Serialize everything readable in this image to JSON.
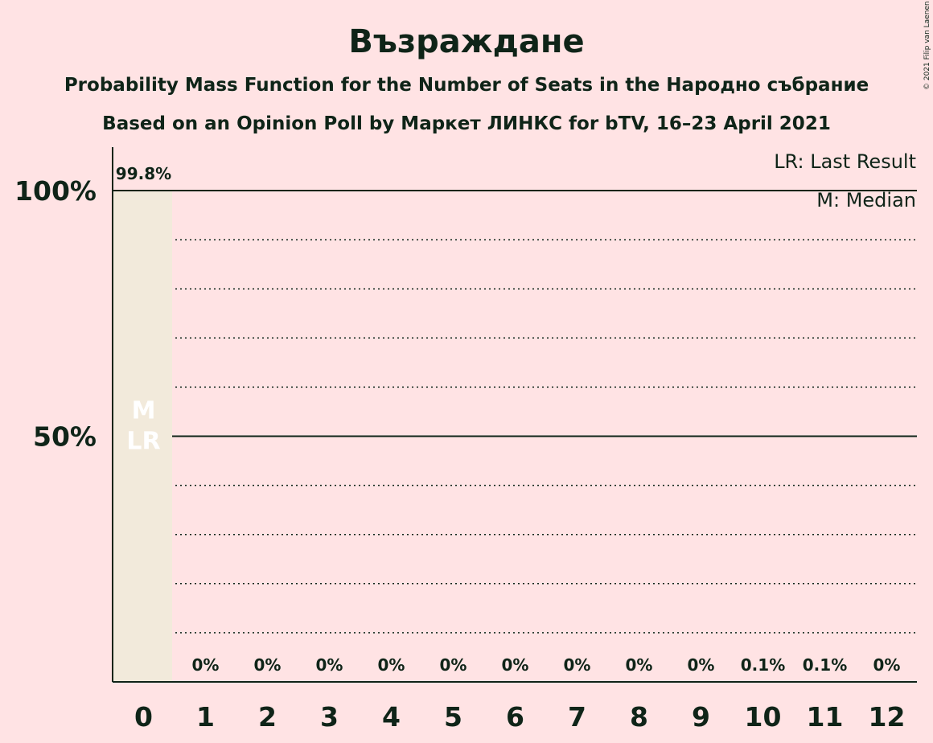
{
  "colors": {
    "background": "#ffe3e4",
    "bar": "#f2eadb",
    "text": "#0f2418"
  },
  "copyright": "© 2021 Filip van Laenen",
  "chart_data": {
    "type": "bar",
    "title": "Възраждане",
    "subtitles": [
      "Probability Mass Function for the Number of Seats in the Народно събрание",
      "Based on an Opinion Poll by Маркет ЛИНКС for bTV, 16–23 April 2021"
    ],
    "categories": [
      "0",
      "1",
      "2",
      "3",
      "4",
      "5",
      "6",
      "7",
      "8",
      "9",
      "10",
      "11",
      "12"
    ],
    "values": [
      99.8,
      0,
      0,
      0,
      0,
      0,
      0,
      0,
      0,
      0,
      0.1,
      0.1,
      0
    ],
    "data_labels": [
      "99.8%",
      "0%",
      "0%",
      "0%",
      "0%",
      "0%",
      "0%",
      "0%",
      "0%",
      "0%",
      "0.1%",
      "0.1%",
      "0%"
    ],
    "bar_annotations": [
      "M",
      "LR"
    ],
    "annotated_category": "0",
    "ylim": [
      0,
      100
    ],
    "y_ticks": [
      {
        "value": 100,
        "label": "100%"
      },
      {
        "value": 50,
        "label": "50%"
      }
    ],
    "y_grid_minor_step": 10,
    "grid": true,
    "legend": {
      "placement": "top-right",
      "entries": [
        "LR: Last Result",
        "M: Median"
      ]
    }
  }
}
